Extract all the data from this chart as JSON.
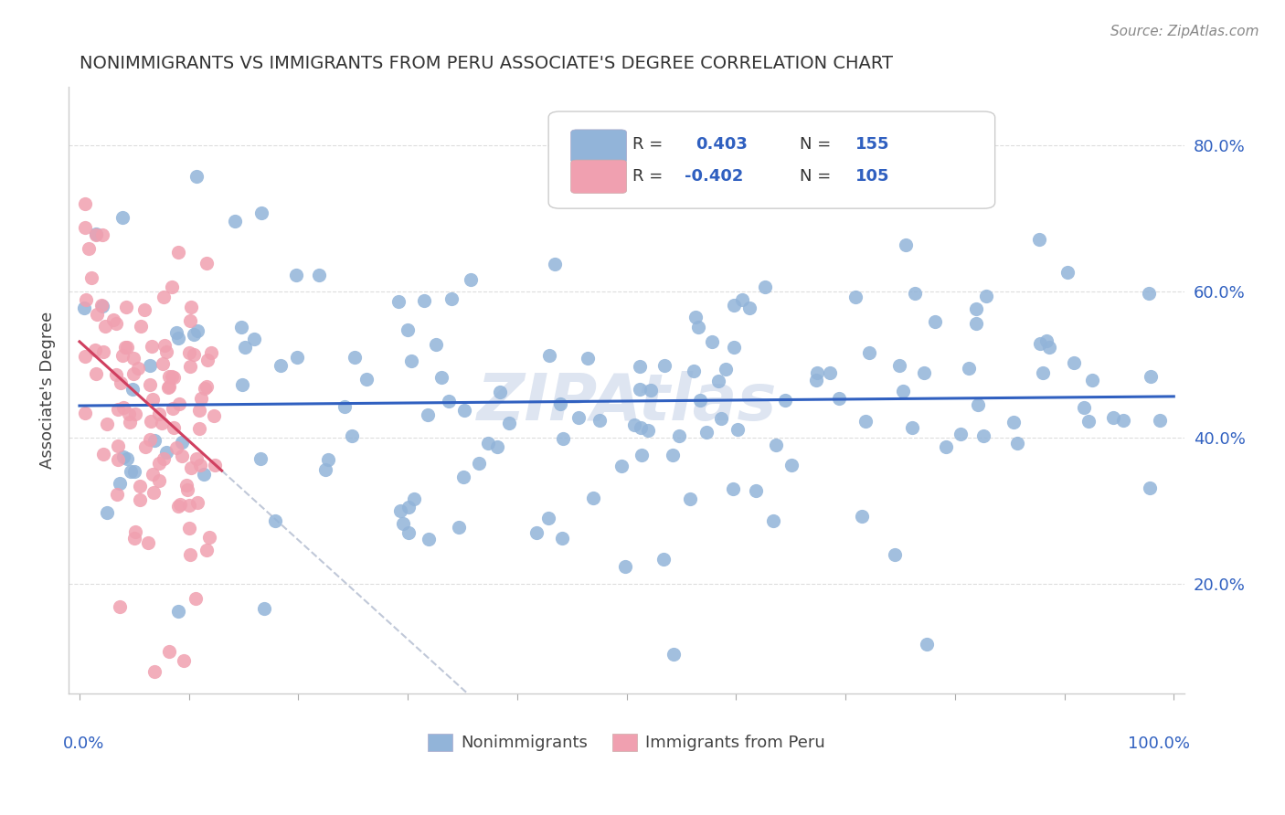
{
  "title": "NONIMMIGRANTS VS IMMIGRANTS FROM PERU ASSOCIATE'S DEGREE CORRELATION CHART",
  "source": "Source: ZipAtlas.com",
  "ylabel": "Associate's Degree",
  "legend_blue_r": "R =  0.403",
  "legend_blue_n": "N = 155",
  "legend_pink_r": "R = -0.402",
  "legend_pink_n": "N = 105",
  "legend1_label": "Nonimmigrants",
  "legend2_label": "Immigrants from Peru",
  "blue_color": "#92b4d9",
  "pink_color": "#f0a0b0",
  "line_blue": "#3060c0",
  "line_pink": "#d04060",
  "line_dashed_color": "#c0c8d8",
  "watermark": "ZIPAtlas",
  "watermark_color": "#c8d4e8",
  "background_color": "#ffffff",
  "legend_r_color": "#3060c0",
  "R_blue": 0.403,
  "N_blue": 155,
  "R_pink": -0.402,
  "N_pink": 105,
  "y_ticks": [
    0.2,
    0.4,
    0.6,
    0.8
  ],
  "y_tick_labels": [
    "20.0%",
    "40.0%",
    "60.0%",
    "80.0%"
  ],
  "xlim": [
    -0.01,
    1.01
  ],
  "ylim": [
    0.05,
    0.88
  ]
}
